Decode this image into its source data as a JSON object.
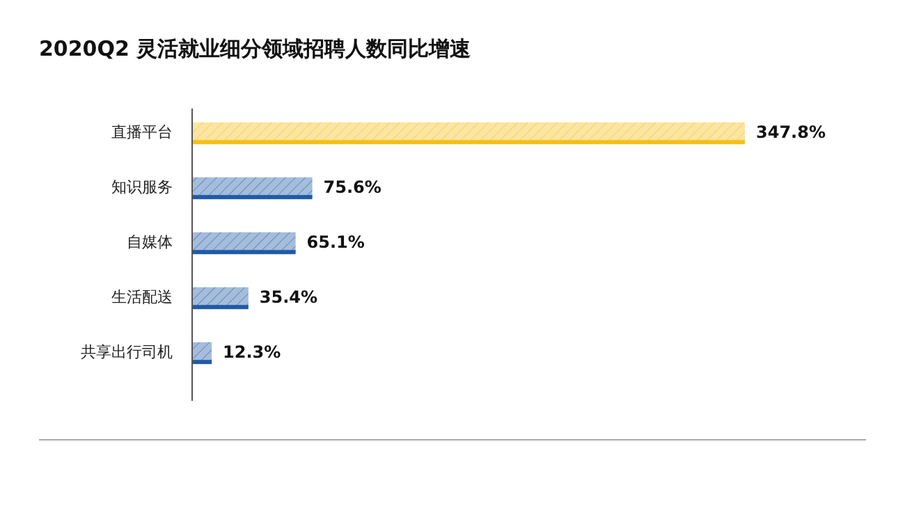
{
  "chart_data": {
    "type": "bar",
    "orientation": "horizontal",
    "title": "2020Q2 灵活就业细分领域招聘人数同比增速",
    "categories": [
      "直播平台",
      "知识服务",
      "自媒体",
      "生活配送",
      "共享出行司机"
    ],
    "values": [
      347.8,
      75.6,
      65.1,
      35.4,
      12.3
    ],
    "value_labels": [
      "347.8%",
      "75.6%",
      "65.1%",
      "35.4%",
      "12.3%"
    ],
    "colors": [
      "#f5bf19",
      "#1f5aa6",
      "#1f5aa6",
      "#1f5aa6",
      "#1f5aa6"
    ]
  }
}
